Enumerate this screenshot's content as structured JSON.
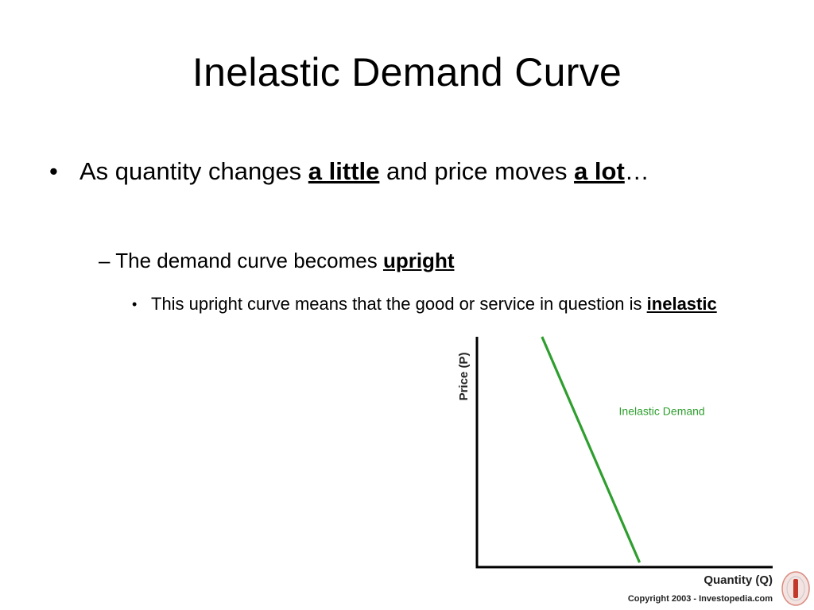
{
  "slide": {
    "title": "Inelastic Demand Curve",
    "bullet1": {
      "mark": "•",
      "part1": "As quantity changes ",
      "em1": "a little",
      "part2": " and price moves ",
      "em2": "a lot",
      "part3": "…"
    },
    "bullet2": {
      "mark": "–",
      "part1": " The demand curve becomes ",
      "em1": "upright"
    },
    "bullet3": {
      "mark": "•",
      "part1": "This upright curve means that the good or service in question is ",
      "em1": "inelastic"
    }
  },
  "chart_data": {
    "type": "line",
    "title": "",
    "xlabel": "Quantity (Q)",
    "ylabel": "Price (P)",
    "xlim": [
      0,
      10
    ],
    "ylim": [
      0,
      10
    ],
    "grid": false,
    "series": [
      {
        "name": "Inelastic Demand",
        "color": "#2e9e2e",
        "x": [
          2.2,
          5.5
        ],
        "y": [
          10,
          0.2
        ]
      }
    ],
    "copyright": "Copyright 2003 - Investopedia.com"
  }
}
